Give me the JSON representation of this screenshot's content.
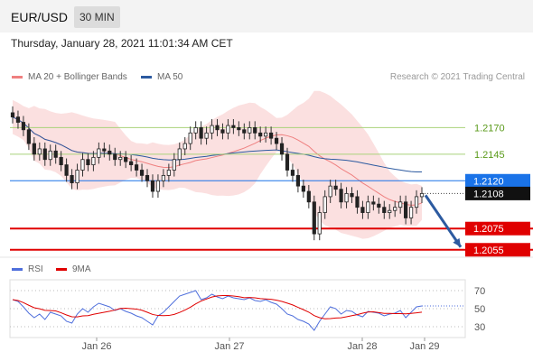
{
  "header": {
    "symbol": "EUR/USD",
    "timeframe": "30 MIN"
  },
  "datetime": "Thursday, January 28, 2021 11:01:34 AM CET",
  "legend": {
    "ma20": {
      "label": "MA 20 + Bollinger Bands",
      "color": "#ef8080"
    },
    "ma50": {
      "label": "MA 50",
      "color": "#2c5aa0"
    },
    "credit": "Research © 2021 Trading Central"
  },
  "levels": [
    {
      "value": "1.2170",
      "kind": "resistance",
      "color": "#8dc63f"
    },
    {
      "value": "1.2145",
      "kind": "resistance",
      "color": "#8dc63f"
    },
    {
      "value": "1.2120",
      "kind": "pivot",
      "color": "#1a73e8"
    },
    {
      "value": "1.2108",
      "kind": "last-price",
      "color": "#111111"
    },
    {
      "value": "1.2075",
      "kind": "support",
      "color": "#e00000"
    },
    {
      "value": "1.2055",
      "kind": "support",
      "color": "#e00000"
    }
  ],
  "rsi_legend": {
    "rsi": {
      "label": "RSI",
      "color": "#4f6fdc"
    },
    "ma9": {
      "label": "9MA",
      "color": "#e00000"
    }
  },
  "rsi_axis": [
    "70",
    "50",
    "30"
  ],
  "x_axis": [
    "Jan 26",
    "Jan 27",
    "Jan 28",
    "Jan 29"
  ],
  "chart_data": {
    "type": "candlestick",
    "instrument": "EUR/USD",
    "interval": "30 MIN",
    "price_ylim": [
      1.2048,
      1.2195
    ],
    "rsi_ylim": [
      20,
      80
    ],
    "closes": [
      1.218,
      1.2175,
      1.2168,
      1.2155,
      1.2145,
      1.215,
      1.214,
      1.2148,
      1.2142,
      1.2135,
      1.2125,
      1.2118,
      1.213,
      1.214,
      1.2135,
      1.2142,
      1.215,
      1.2148,
      1.2145,
      1.214,
      1.2142,
      1.2138,
      1.2135,
      1.213,
      1.2125,
      1.212,
      1.211,
      1.212,
      1.2125,
      1.213,
      1.214,
      1.215,
      1.2155,
      1.2165,
      1.217,
      1.216,
      1.2165,
      1.2172,
      1.2168,
      1.2165,
      1.2172,
      1.217,
      1.2168,
      1.2165,
      1.217,
      1.2165,
      1.2162,
      1.2165,
      1.216,
      1.2155,
      1.2145,
      1.213,
      1.2125,
      1.2115,
      1.211,
      1.21,
      1.207,
      1.209,
      1.2105,
      1.2115,
      1.2112,
      1.21,
      1.2108,
      1.2105,
      1.2095,
      1.209,
      1.21,
      1.2098,
      1.2095,
      1.209,
      1.2092,
      1.2095,
      1.21,
      1.2085,
      1.2095,
      1.2105,
      1.2108
    ],
    "rsi": [
      60,
      58,
      52,
      45,
      40,
      44,
      38,
      46,
      44,
      42,
      36,
      34,
      44,
      50,
      46,
      52,
      56,
      54,
      52,
      48,
      50,
      47,
      45,
      42,
      40,
      36,
      32,
      42,
      46,
      52,
      58,
      64,
      66,
      68,
      70,
      60,
      62,
      66,
      63,
      61,
      64,
      62,
      61,
      60,
      62,
      59,
      58,
      60,
      57,
      55,
      50,
      44,
      42,
      38,
      36,
      33,
      26,
      36,
      44,
      52,
      50,
      44,
      48,
      47,
      43,
      41,
      47,
      46,
      45,
      42,
      44,
      45,
      48,
      40,
      46,
      52,
      53
    ],
    "levels": [
      1.217,
      1.2145,
      1.212,
      1.2108,
      1.2075,
      1.2055
    ],
    "projection": {
      "from": 1.2108,
      "to": 1.2055
    }
  }
}
